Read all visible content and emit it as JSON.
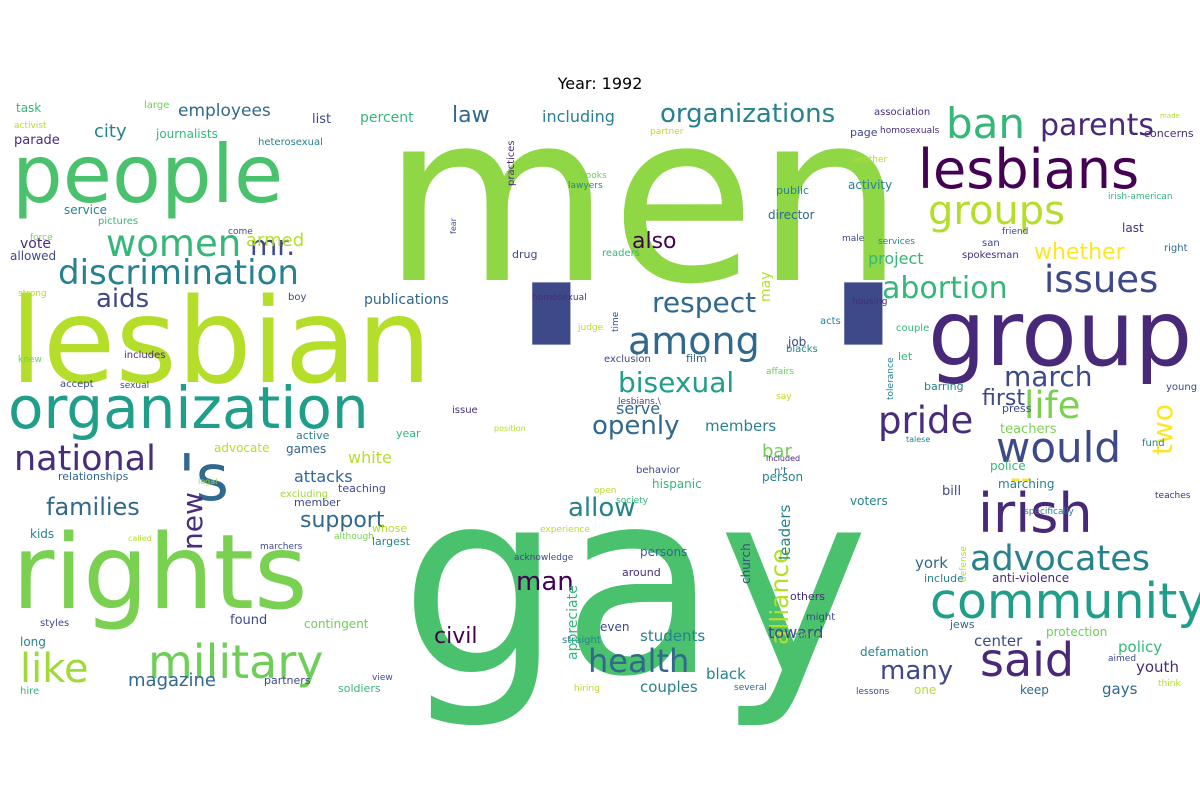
{
  "title": "Year: 1992",
  "palette": {
    "lime": "#b5de2b",
    "green": "#6ece58",
    "mid_green": "#35b779",
    "teal": "#1f9e89",
    "blue_teal": "#26828e",
    "blue": "#31688e",
    "indigo": "#3e4989",
    "purple": "#482878",
    "dark": "#440154",
    "yellow": "#fde725"
  },
  "words": [
    {
      "text": "men",
      "c": "#8fd744"
    },
    {
      "text": "gay",
      "c": "#4ac16d"
    },
    {
      "text": "'",
      "c": "#3e4989"
    },
    {
      "text": "'",
      "c": "#3e4989"
    },
    {
      "text": "lesbian",
      "c": "#b5de2b"
    },
    {
      "text": "people",
      "c": "#4ac16d"
    },
    {
      "text": "rights",
      "c": "#7ad151"
    },
    {
      "text": "group",
      "c": "#482878"
    },
    {
      "text": "organization",
      "c": "#1f9e89"
    },
    {
      "text": "lesbians",
      "c": "#440154"
    },
    {
      "text": "irish",
      "c": "#482878"
    },
    {
      "text": "community",
      "c": "#1f9e89"
    },
    {
      "text": "military",
      "c": "#6ece58"
    },
    {
      "text": "said",
      "c": "#482878"
    },
    {
      "text": "'s",
      "c": "#31688e"
    },
    {
      "text": "would",
      "c": "#3e4989"
    },
    {
      "text": "discrimination",
      "c": "#26828e"
    },
    {
      "text": "groups",
      "c": "#b5de2b"
    },
    {
      "text": "ban",
      "c": "#35b779"
    },
    {
      "text": "women",
      "c": "#35b779"
    },
    {
      "text": "national",
      "c": "#472d7b"
    },
    {
      "text": "advocates",
      "c": "#26828e"
    },
    {
      "text": "issues",
      "c": "#3e4989"
    },
    {
      "text": "among",
      "c": "#31688e"
    },
    {
      "text": "health",
      "c": "#31688e"
    },
    {
      "text": "like",
      "c": "#a0da39"
    },
    {
      "text": "pride",
      "c": "#472d7b"
    },
    {
      "text": "life",
      "c": "#7ad151"
    },
    {
      "text": "organizations",
      "c": "#26828e"
    },
    {
      "text": "abortion",
      "c": "#35b779"
    },
    {
      "text": "respect",
      "c": "#31688e"
    },
    {
      "text": "bisexual",
      "c": "#1f9e89"
    },
    {
      "text": "parents",
      "c": "#482878"
    },
    {
      "text": "man",
      "c": "#440154"
    },
    {
      "text": "allow",
      "c": "#26828e"
    },
    {
      "text": "families",
      "c": "#31688e"
    },
    {
      "text": "march",
      "c": "#3e4989"
    },
    {
      "text": "openly",
      "c": "#31688e"
    },
    {
      "text": "support",
      "c": "#31688e"
    },
    {
      "text": "new",
      "c": "#472d7b"
    },
    {
      "text": "mr.",
      "c": "#3e4989"
    },
    {
      "text": "aids",
      "c": "#3e4989"
    },
    {
      "text": "alliance",
      "c": "#b5de2b"
    },
    {
      "text": "many",
      "c": "#3e4989"
    },
    {
      "text": "civil",
      "c": "#440154"
    },
    {
      "text": "also",
      "c": "#440154"
    },
    {
      "text": "first",
      "c": "#3e4989"
    },
    {
      "text": "two",
      "c": "#fde725"
    },
    {
      "text": "--",
      "c": "#fde725"
    },
    {
      "text": "whether",
      "c": "#fde725"
    },
    {
      "text": "law",
      "c": "#31688e"
    },
    {
      "text": "city",
      "c": "#26828e"
    },
    {
      "text": "armed",
      "c": "#b5de2b"
    },
    {
      "text": "magazine",
      "c": "#31688e"
    },
    {
      "text": "employees",
      "c": "#31688e"
    },
    {
      "text": "including",
      "c": "#26828e"
    },
    {
      "text": "project",
      "c": "#35b779"
    },
    {
      "text": "bar",
      "c": "#6ece58"
    },
    {
      "text": "attacks",
      "c": "#31688e"
    },
    {
      "text": "white",
      "c": "#b5de2b"
    },
    {
      "text": "serve",
      "c": "#31688e"
    },
    {
      "text": "members",
      "c": "#26828e"
    },
    {
      "text": "students",
      "c": "#26828e"
    },
    {
      "text": "couples",
      "c": "#26828e"
    },
    {
      "text": "black",
      "c": "#26828e"
    },
    {
      "text": "toward",
      "c": "#3e4989"
    },
    {
      "text": "york",
      "c": "#31688e"
    },
    {
      "text": "leaders",
      "c": "#26828e"
    },
    {
      "text": "policy",
      "c": "#35b779"
    },
    {
      "text": "youth",
      "c": "#482878"
    },
    {
      "text": "gays",
      "c": "#31688e"
    },
    {
      "text": "center",
      "c": "#3e4989"
    },
    {
      "text": "vote",
      "c": "#472d7b"
    },
    {
      "text": "publications",
      "c": "#31688e"
    },
    {
      "text": "percent",
      "c": "#35b779"
    },
    {
      "text": "list",
      "c": "#3e4989"
    },
    {
      "text": "may",
      "c": "#b5de2b"
    },
    {
      "text": "task",
      "c": "#35b779"
    },
    {
      "text": "activist",
      "c": "#b5de2b"
    },
    {
      "text": "parade",
      "c": "#472d7b"
    },
    {
      "text": "large",
      "c": "#6ece58"
    },
    {
      "text": "journalists",
      "c": "#35b779"
    },
    {
      "text": "heterosexual",
      "c": "#26828e"
    },
    {
      "text": "service",
      "c": "#26828e"
    },
    {
      "text": "pictures",
      "c": "#35b779"
    },
    {
      "text": "force",
      "c": "#7ad151"
    },
    {
      "text": "allowed",
      "c": "#3e4989"
    },
    {
      "text": "strong",
      "c": "#b5de2b"
    },
    {
      "text": "knew",
      "c": "#6ece58"
    },
    {
      "text": "includes",
      "c": "#472d7b"
    },
    {
      "text": "accept",
      "c": "#3e4989"
    },
    {
      "text": "sexual",
      "c": "#3e4989"
    },
    {
      "text": "advocate",
      "c": "#b5de2b"
    },
    {
      "text": "games",
      "c": "#31688e"
    },
    {
      "text": "active",
      "c": "#26828e"
    },
    {
      "text": "year",
      "c": "#35b779"
    },
    {
      "text": "relationships",
      "c": "#31688e"
    },
    {
      "text": "legal",
      "c": "#a0da39"
    },
    {
      "text": "excluding",
      "c": "#a0da39"
    },
    {
      "text": "teaching",
      "c": "#3e4989"
    },
    {
      "text": "member",
      "c": "#3e4989"
    },
    {
      "text": "kids",
      "c": "#26828e"
    },
    {
      "text": "called",
      "c": "#b5de2b"
    },
    {
      "text": "although",
      "c": "#7ad151"
    },
    {
      "text": "marchers",
      "c": "#3e4989"
    },
    {
      "text": "whose",
      "c": "#b5de2b"
    },
    {
      "text": "largest",
      "c": "#26828e"
    },
    {
      "text": "styles",
      "c": "#3e4989"
    },
    {
      "text": "found",
      "c": "#3e4989"
    },
    {
      "text": "contingent",
      "c": "#6ece58"
    },
    {
      "text": "long",
      "c": "#26828e"
    },
    {
      "text": "hire",
      "c": "#35b779"
    },
    {
      "text": "partners",
      "c": "#3e4989"
    },
    {
      "text": "view",
      "c": "#3e4989"
    },
    {
      "text": "soldiers",
      "c": "#35b779"
    },
    {
      "text": "hiring",
      "c": "#b5de2b"
    },
    {
      "text": "straight",
      "c": "#26828e"
    },
    {
      "text": "appreciate",
      "c": "#35b779"
    },
    {
      "text": "even",
      "c": "#3e4989"
    },
    {
      "text": "persons",
      "c": "#31688e"
    },
    {
      "text": "around",
      "c": "#472d7b"
    },
    {
      "text": "church",
      "c": "#3e4989"
    },
    {
      "text": "several",
      "c": "#31688e"
    },
    {
      "text": "others",
      "c": "#472d7b"
    },
    {
      "text": "might",
      "c": "#3e4989"
    },
    {
      "text": "since",
      "c": "#6ece58"
    },
    {
      "text": "defamation",
      "c": "#26828e"
    },
    {
      "text": "one",
      "c": "#b5de2b"
    },
    {
      "text": "lessons",
      "c": "#3e4989"
    },
    {
      "text": "keep",
      "c": "#31688e"
    },
    {
      "text": "think",
      "c": "#b5de2b"
    },
    {
      "text": "aimed",
      "c": "#3e4989"
    },
    {
      "text": "jews",
      "c": "#31688e"
    },
    {
      "text": "protection",
      "c": "#6ece58"
    },
    {
      "text": "practices",
      "c": "#472d7b"
    },
    {
      "text": "books",
      "c": "#6ece58"
    },
    {
      "text": "lawyers",
      "c": "#26828e"
    },
    {
      "text": "partner",
      "c": "#b5de2b"
    },
    {
      "text": "come",
      "c": "#3e4989"
    },
    {
      "text": "fear",
      "c": "#3e4989"
    },
    {
      "text": "readers",
      "c": "#35b779"
    },
    {
      "text": "drug",
      "c": "#3e4989"
    },
    {
      "text": "homosexual",
      "c": "#472d7b"
    },
    {
      "text": "judge",
      "c": "#b5de2b"
    },
    {
      "text": "time",
      "c": "#3e4989"
    },
    {
      "text": "exclusion",
      "c": "#3e4989"
    },
    {
      "text": "film",
      "c": "#31688e"
    },
    {
      "text": "public",
      "c": "#26828e"
    },
    {
      "text": "director",
      "c": "#31688e"
    },
    {
      "text": "activity",
      "c": "#26828e"
    },
    {
      "text": "included",
      "c": "#472d7b"
    },
    {
      "text": "n't",
      "c": "#31688e"
    },
    {
      "text": "hispanic",
      "c": "#35b779"
    },
    {
      "text": "behavior",
      "c": "#3e4989"
    },
    {
      "text": "open",
      "c": "#b5de2b"
    },
    {
      "text": "society",
      "c": "#35b779"
    },
    {
      "text": "experience",
      "c": "#b5de2b"
    },
    {
      "text": "acknowledge",
      "c": "#3e4989"
    },
    {
      "text": "person",
      "c": "#26828e"
    },
    {
      "text": "voters",
      "c": "#26828e"
    },
    {
      "text": "police",
      "c": "#35b779"
    },
    {
      "text": "teachers",
      "c": "#7ad151"
    },
    {
      "text": "marching",
      "c": "#26828e"
    },
    {
      "text": "bill",
      "c": "#3e4989"
    },
    {
      "text": "include",
      "c": "#26828e"
    },
    {
      "text": "anti-violence",
      "c": "#472d7b"
    },
    {
      "text": "defense",
      "c": "#b5de2b"
    },
    {
      "text": "specifically",
      "c": "#26828e"
    },
    {
      "text": "teaches",
      "c": "#472d7b"
    },
    {
      "text": "issue",
      "c": "#472d7b"
    },
    {
      "text": "position",
      "c": "#b5de2b"
    },
    {
      "text": "lesbians.\\",
      "c": "#3e4989"
    },
    {
      "text": "say",
      "c": "#b5de2b"
    },
    {
      "text": "affairs",
      "c": "#6ece58"
    },
    {
      "text": "blacks",
      "c": "#26828e"
    },
    {
      "text": "job",
      "c": "#3e4989"
    },
    {
      "text": "acts",
      "c": "#26828e"
    },
    {
      "text": "housing",
      "c": "#472d7b"
    },
    {
      "text": "tolerance",
      "c": "#26828e"
    },
    {
      "text": "let",
      "c": "#35b779"
    },
    {
      "text": "couple",
      "c": "#35b779"
    },
    {
      "text": "barring",
      "c": "#26828e"
    },
    {
      "text": "young",
      "c": "#3e4989"
    },
    {
      "text": "press",
      "c": "#3e4989"
    },
    {
      "text": "talese",
      "c": "#26828e"
    },
    {
      "text": "fund",
      "c": "#26828e"
    },
    {
      "text": "association",
      "c": "#472d7b"
    },
    {
      "text": "made",
      "c": "#b5de2b"
    },
    {
      "text": "homosexuals",
      "c": "#472d7b"
    },
    {
      "text": "concerns",
      "c": "#472d7b"
    },
    {
      "text": "another",
      "c": "#b5de2b"
    },
    {
      "text": "irish-american",
      "c": "#35b779"
    },
    {
      "text": "male",
      "c": "#3e4989"
    },
    {
      "text": "friend",
      "c": "#3e4989"
    },
    {
      "text": "last",
      "c": "#472d7b"
    },
    {
      "text": "services",
      "c": "#26828e"
    },
    {
      "text": "right",
      "c": "#31688e"
    },
    {
      "text": "san",
      "c": "#3e4989"
    },
    {
      "text": "spokesman",
      "c": "#472d7b"
    },
    {
      "text": "page",
      "c": "#3e4989"
    },
    {
      "text": "boy",
      "c": "#3e4989"
    }
  ]
}
